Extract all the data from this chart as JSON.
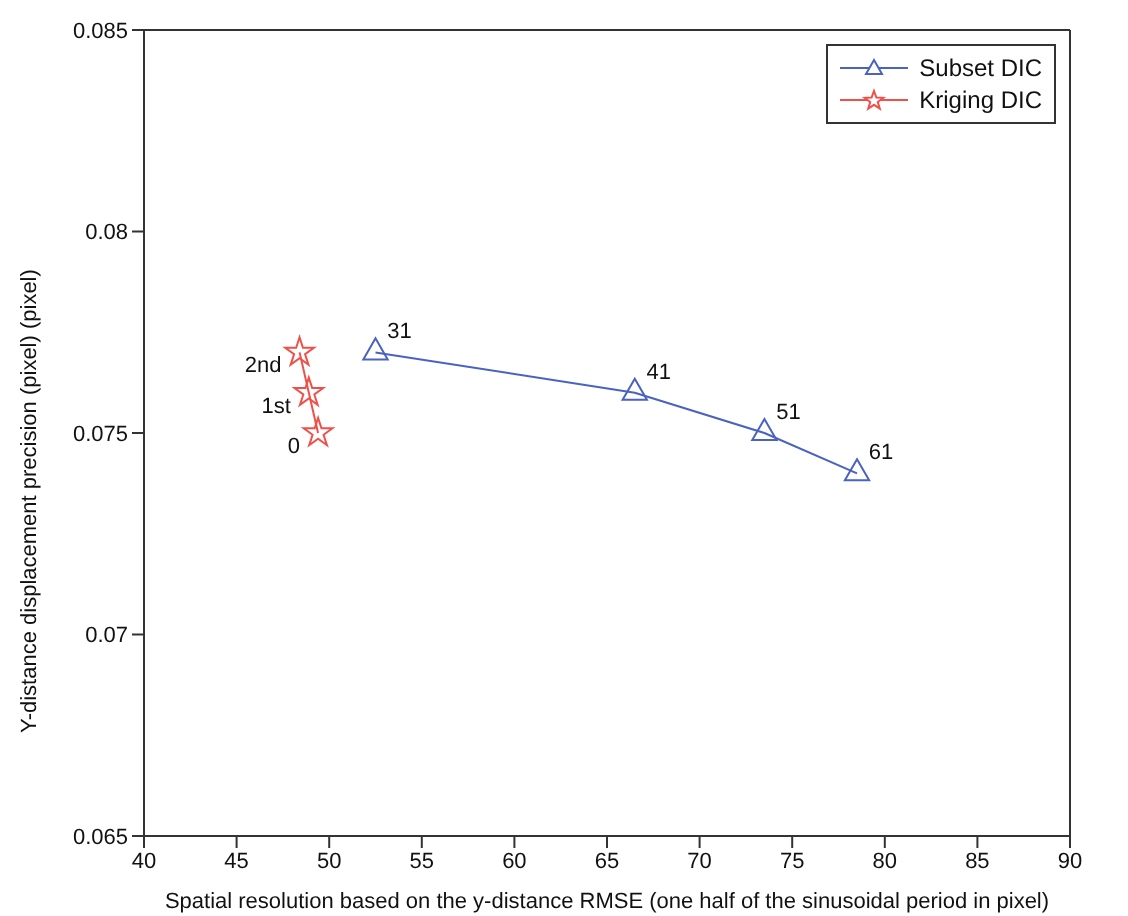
{
  "chart_data": {
    "type": "line",
    "xlabel": "Spatial resolution based on the y-distance RMSE (one half of the sinusoidal period in pixel)",
    "ylabel": "Y-distance displacement precision (pixel) (pixel)",
    "series": [
      {
        "name": "Subset DIC",
        "color": "#4a62c0",
        "marker": "triangle",
        "x": [
          52.5,
          66.5,
          73.5,
          78.5
        ],
        "values": [
          0.077,
          0.076,
          0.075,
          0.074
        ]
      },
      {
        "name": "Kriging DIC",
        "color": "#f0504a",
        "marker": "star",
        "x": [
          49.4,
          48.9,
          48.4
        ],
        "values": [
          0.075,
          0.076,
          0.077
        ]
      }
    ],
    "annotations": [
      {
        "text": "31",
        "x": 52.5,
        "y": 0.077
      },
      {
        "text": "41",
        "x": 66.5,
        "y": 0.076
      },
      {
        "text": "51",
        "x": 73.5,
        "y": 0.075
      },
      {
        "text": "61",
        "x": 78.5,
        "y": 0.074
      },
      {
        "text": "0",
        "x": 49.4,
        "y": 0.075
      },
      {
        "text": "1st",
        "x": 48.9,
        "y": 0.076
      },
      {
        "text": "2nd",
        "x": 48.4,
        "y": 0.077
      }
    ],
    "xlim": [
      40,
      90
    ],
    "xticks": [
      40,
      45,
      50,
      55,
      60,
      65,
      70,
      75,
      80,
      85,
      90
    ],
    "ylim": [
      0.065,
      0.085
    ],
    "yticks": [
      0.065,
      0.07,
      0.075,
      0.08,
      0.085
    ],
    "grid": false,
    "legend": "top right",
    "line_style": "solid"
  }
}
